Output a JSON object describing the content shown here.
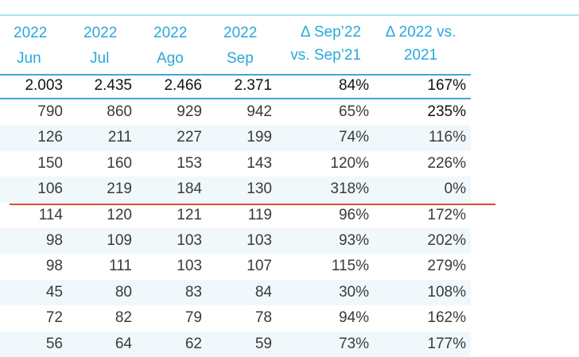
{
  "headers": [
    {
      "year": "2022",
      "month": "Jun"
    },
    {
      "year": "2022",
      "month": "Jul"
    },
    {
      "year": "2022",
      "month": "Ago"
    },
    {
      "year": "2022",
      "month": "Sep"
    },
    {
      "line1": "Δ Sep’22",
      "line2": "vs. Sep’21"
    },
    {
      "line1": "Δ 2022 vs.",
      "line2": "2021"
    }
  ],
  "totals": [
    "2.003",
    "2.435",
    "2.466",
    "2.371",
    "84%",
    "167%"
  ],
  "rows": [
    [
      "790",
      "860",
      "929",
      "942",
      "65%",
      "235%"
    ],
    [
      "126",
      "211",
      "227",
      "199",
      "74%",
      "116%"
    ],
    [
      "150",
      "160",
      "153",
      "143",
      "120%",
      "226%"
    ],
    [
      "106",
      "219",
      "184",
      "130",
      "318%",
      "0%"
    ],
    [
      "114",
      "120",
      "121",
      "119",
      "96%",
      "172%"
    ],
    [
      "98",
      "109",
      "103",
      "103",
      "93%",
      "202%"
    ],
    [
      "98",
      "111",
      "103",
      "107",
      "115%",
      "279%"
    ],
    [
      "45",
      "80",
      "83",
      "84",
      "30%",
      "108%"
    ],
    [
      "72",
      "82",
      "79",
      "78",
      "94%",
      "162%"
    ],
    [
      "56",
      "64",
      "62",
      "59",
      "73%",
      "177%"
    ]
  ],
  "colors": {
    "header_text": "#29a8d9",
    "rule_blue": "#3da7d9",
    "rule_red": "#d94a2e",
    "alt_row": "#f1f8fc"
  }
}
